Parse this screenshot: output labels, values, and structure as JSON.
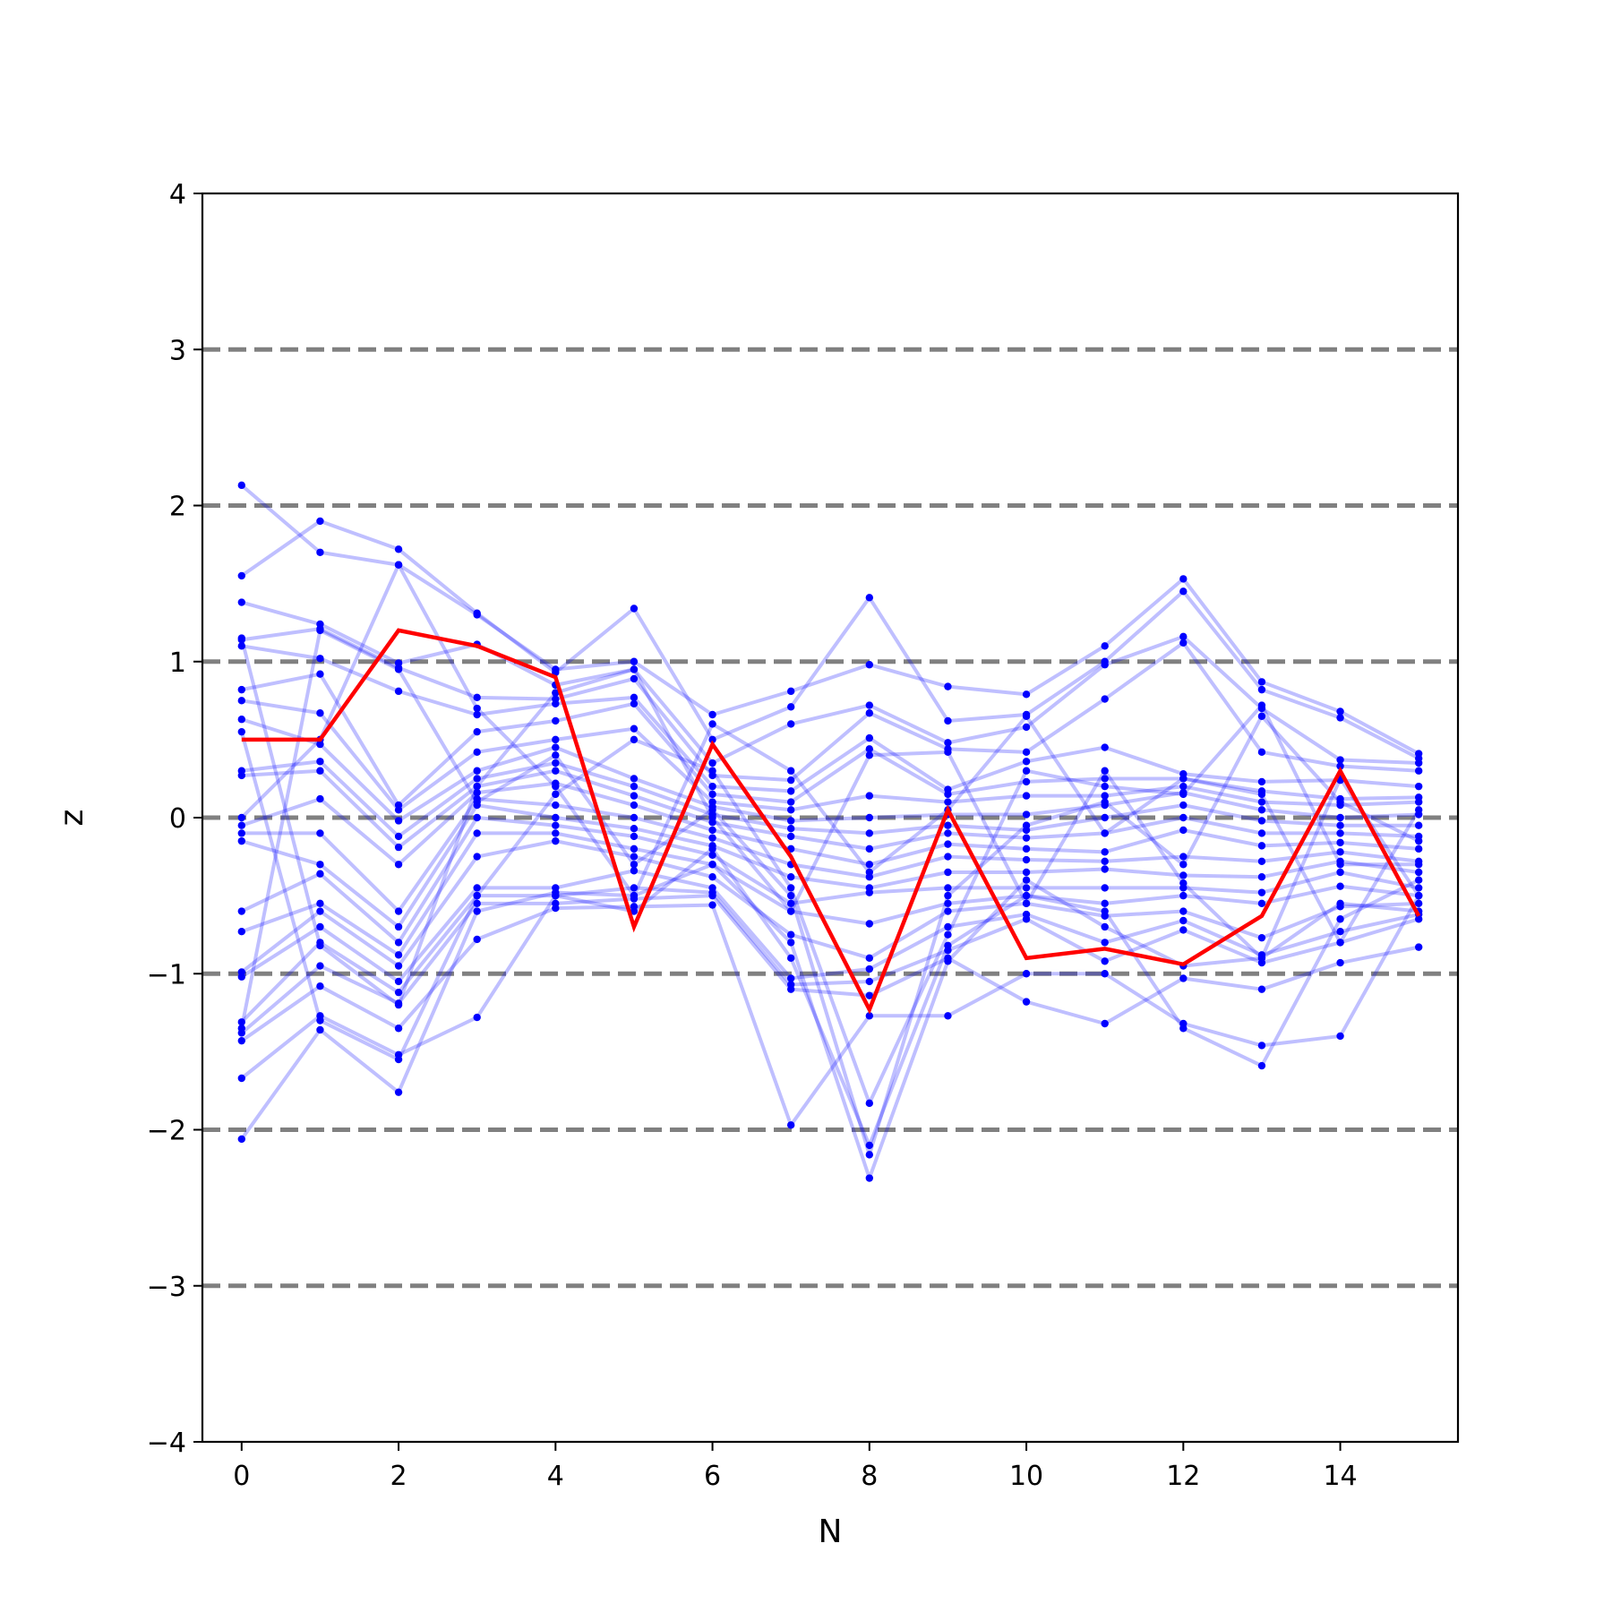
{
  "chart_data": {
    "type": "line",
    "xlabel": "N",
    "ylabel": "z",
    "xlim": [
      -0.5,
      15.5
    ],
    "ylim": [
      -4,
      4
    ],
    "x_ticks": [
      0,
      2,
      4,
      6,
      8,
      10,
      12,
      14
    ],
    "y_ticks": [
      -4,
      -3,
      -2,
      -1,
      0,
      1,
      2,
      3,
      4
    ],
    "y_tick_labels": [
      "−4",
      "−3",
      "−2",
      "−1",
      "0",
      "1",
      "2",
      "3",
      "4"
    ],
    "reference_lines_y": [
      -3,
      -2,
      -1,
      0,
      1,
      2,
      3
    ],
    "colors": {
      "highlight": "#ff0000",
      "background_series": "#0000ff",
      "reference_line": "#808080"
    },
    "x": [
      0,
      1,
      2,
      3,
      4,
      5,
      6,
      7,
      8,
      9,
      10,
      11,
      12,
      13,
      14,
      15
    ],
    "highlight_series": {
      "values": [
        0.5,
        0.5,
        1.2,
        1.1,
        0.9,
        -0.7,
        0.47,
        -0.25,
        -1.23,
        0.05,
        -0.9,
        -0.84,
        -0.94,
        -0.63,
        0.3,
        -0.63
      ]
    },
    "background_series": [
      {
        "values": [
          2.13,
          1.7,
          1.62,
          1.3,
          0.95,
          1.0,
          0.66,
          0.81,
          0.98,
          0.84,
          0.79,
          1.1,
          1.53,
          0.87,
          0.68,
          0.41
        ]
      },
      {
        "values": [
          1.55,
          1.9,
          1.72,
          1.31,
          0.93,
          1.34,
          0.5,
          0.71,
          1.41,
          0.62,
          0.66,
          1.0,
          1.45,
          0.82,
          0.64,
          0.38
        ]
      },
      {
        "values": [
          1.38,
          1.24,
          0.99,
          1.11,
          0.85,
          0.95,
          0.35,
          0.6,
          0.72,
          0.48,
          0.58,
          0.98,
          1.16,
          0.7,
          0.37,
          0.35
        ]
      },
      {
        "values": [
          1.14,
          1.21,
          0.96,
          0.77,
          0.76,
          0.89,
          0.27,
          0.24,
          0.67,
          0.44,
          0.42,
          0.76,
          1.12,
          0.42,
          0.33,
          0.3
        ]
      },
      {
        "values": [
          1.1,
          1.02,
          0.81,
          0.66,
          0.73,
          0.77,
          0.2,
          0.17,
          0.51,
          0.18,
          0.36,
          0.45,
          0.28,
          0.23,
          0.24,
          0.2
        ]
      },
      {
        "values": [
          0.82,
          0.92,
          0.08,
          0.55,
          0.62,
          0.73,
          0.15,
          0.1,
          0.44,
          0.15,
          0.23,
          0.25,
          0.25,
          0.17,
          0.12,
          0.13
        ]
      },
      {
        "values": [
          0.75,
          0.67,
          0.05,
          0.42,
          0.5,
          0.57,
          0.1,
          0.05,
          0.14,
          0.1,
          0.14,
          0.14,
          0.2,
          0.1,
          0.08,
          0.1
        ]
      },
      {
        "values": [
          0.63,
          0.47,
          -0.02,
          0.3,
          0.45,
          0.25,
          0.07,
          -0.02,
          0.0,
          0.02,
          0.02,
          0.08,
          0.16,
          0.05,
          0.0,
          0.02
        ]
      },
      {
        "values": [
          0.3,
          0.36,
          -0.12,
          0.25,
          0.35,
          0.2,
          0.02,
          -0.07,
          -0.1,
          -0.05,
          -0.08,
          0.0,
          0.08,
          -0.02,
          -0.05,
          -0.05
        ]
      },
      {
        "values": [
          0.27,
          0.3,
          -0.19,
          0.2,
          0.3,
          0.14,
          -0.03,
          -0.12,
          -0.2,
          -0.1,
          -0.13,
          -0.1,
          0.0,
          -0.1,
          -0.1,
          -0.12
        ]
      },
      {
        "values": [
          -0.05,
          0.12,
          -0.3,
          0.16,
          0.22,
          0.08,
          -0.08,
          -0.2,
          -0.3,
          -0.17,
          -0.2,
          -0.22,
          -0.08,
          -0.18,
          -0.16,
          -0.2
        ]
      },
      {
        "values": [
          -0.1,
          -0.1,
          -0.6,
          0.12,
          0.08,
          0.0,
          -0.13,
          -0.3,
          -0.38,
          -0.25,
          -0.27,
          -0.28,
          -0.25,
          -0.28,
          -0.22,
          -0.28
        ]
      },
      {
        "values": [
          -0.15,
          -0.3,
          -0.7,
          0.08,
          0.0,
          -0.07,
          -0.18,
          -0.38,
          -0.45,
          -0.35,
          -0.35,
          -0.33,
          -0.37,
          -0.38,
          -0.28,
          -0.35
        ]
      },
      {
        "values": [
          -0.6,
          -0.36,
          -0.8,
          0.0,
          -0.05,
          -0.12,
          -0.24,
          -0.55,
          -0.48,
          -0.45,
          -0.45,
          -0.45,
          -0.45,
          -0.48,
          -0.35,
          -0.45
        ]
      },
      {
        "values": [
          -0.73,
          -0.55,
          -0.88,
          -0.1,
          -0.1,
          -0.2,
          -0.3,
          -0.6,
          -0.68,
          -0.55,
          -0.5,
          -0.55,
          -0.5,
          -0.55,
          -0.44,
          -0.5
        ]
      },
      {
        "values": [
          -0.99,
          -0.6,
          -0.95,
          -0.25,
          -0.15,
          -0.25,
          -0.38,
          -0.75,
          -0.9,
          -0.6,
          -0.55,
          -0.63,
          -0.6,
          -0.77,
          -0.57,
          -0.55
        ]
      },
      {
        "values": [
          -1.02,
          -0.7,
          -1.05,
          -0.45,
          -0.45,
          -0.34,
          -0.45,
          -1.03,
          -0.97,
          -0.7,
          -0.62,
          -0.8,
          -0.66,
          -0.88,
          -0.73,
          -0.62
        ]
      },
      {
        "values": [
          -1.31,
          -0.8,
          -1.12,
          -0.5,
          -0.5,
          -0.45,
          -0.48,
          -1.07,
          -1.05,
          -0.85,
          -0.65,
          -0.92,
          -0.72,
          -0.93,
          -0.8,
          -0.65
        ]
      },
      {
        "values": [
          -1.38,
          -0.95,
          -1.19,
          -0.55,
          -0.55,
          -0.52,
          -0.5,
          -1.1,
          -1.14,
          -0.9,
          -1.18,
          -1.32,
          -1.03,
          -1.1,
          -0.93,
          -0.83
        ]
      },
      {
        "values": [
          -1.43,
          -1.08,
          -1.35,
          -0.78,
          -0.58,
          -0.57,
          -0.56,
          -1.97,
          -1.27,
          -1.27,
          -1.0,
          -1.0,
          -1.32,
          -1.46,
          -1.4,
          -0.5
        ]
      },
      {
        "values": [
          -1.67,
          -1.27,
          -1.52,
          -1.28,
          -0.5,
          -0.6,
          -0.2,
          -0.9,
          -2.1,
          -0.82,
          -0.5,
          -0.6,
          -1.35,
          -1.59,
          -0.65,
          -0.4
        ]
      },
      {
        "values": [
          -2.06,
          -1.36,
          -1.76,
          -0.6,
          -0.48,
          -0.5,
          -0.3,
          -0.8,
          -2.31,
          -0.92,
          -0.4,
          -0.7,
          -0.95,
          -0.9,
          -0.55,
          -0.6
        ]
      },
      {
        "values": [
          0.55,
          -1.3,
          -1.55,
          -0.5,
          0.15,
          0.5,
          0.3,
          -0.45,
          -1.83,
          -0.75,
          0.3,
          0.2,
          0.15,
          0.72,
          -0.3,
          -0.3
        ]
      },
      {
        "values": [
          -1.35,
          1.2,
          0.95,
          0.1,
          0.4,
          -0.3,
          0.05,
          -0.5,
          -2.16,
          -0.5,
          -0.05,
          0.1,
          -0.3,
          0.65,
          0.1,
          -0.15
        ]
      },
      {
        "values": [
          1.15,
          -0.82,
          -1.2,
          0.2,
          0.8,
          0.95,
          0.0,
          -0.6,
          0.4,
          0.42,
          -0.55,
          0.3,
          -0.42,
          -0.9,
          0.25,
          -0.5
        ]
      },
      {
        "values": [
          0.0,
          0.5,
          1.62,
          0.7,
          0.2,
          -0.5,
          0.6,
          0.3,
          -0.35,
          0.05,
          0.65,
          -0.1,
          0.25,
          0.15,
          -0.8,
          0.05
        ]
      }
    ]
  }
}
